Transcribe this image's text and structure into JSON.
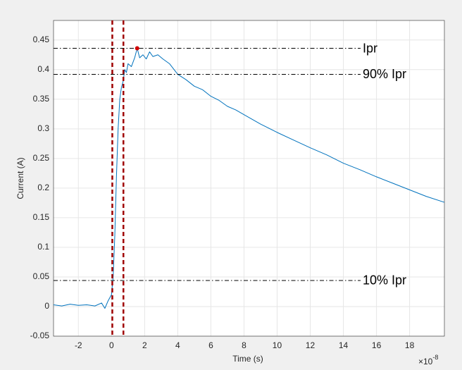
{
  "chart_data": {
    "type": "line",
    "xlabel": "Time (s)",
    "ylabel": "Current (A)",
    "x_multiplier": {
      "base": "×10",
      "exponent": "-8"
    },
    "xlim": [
      -3.5,
      20.1
    ],
    "ylim": [
      -0.05,
      0.483
    ],
    "xticks": [
      -2,
      0,
      2,
      4,
      6,
      8,
      10,
      12,
      14,
      16,
      18
    ],
    "yticks": [
      -0.05,
      0,
      0.05,
      0.1,
      0.15,
      0.2,
      0.25,
      0.3,
      0.35,
      0.4,
      0.45
    ],
    "grid": true,
    "x": [
      -3.5,
      -3,
      -2.5,
      -2,
      -1.5,
      -1,
      -0.6,
      -0.4,
      -0.2,
      0,
      0.1,
      0.2,
      0.3,
      0.4,
      0.5,
      0.6,
      0.7,
      0.8,
      0.9,
      1.0,
      1.2,
      1.4,
      1.55,
      1.7,
      1.9,
      2.1,
      2.3,
      2.5,
      2.8,
      3.1,
      3.5,
      4,
      4.5,
      5,
      5.5,
      6,
      6.5,
      7,
      7.5,
      8,
      9,
      10,
      11,
      12,
      13,
      14,
      15,
      16,
      17,
      18,
      19,
      20.1
    ],
    "series": [
      {
        "color": "#0072bd",
        "values": [
          0.003,
          0.001,
          0.004,
          0.002,
          0.003,
          0.001,
          0.006,
          -0.003,
          0.01,
          0.02,
          0.05,
          0.12,
          0.22,
          0.3,
          0.35,
          0.37,
          0.38,
          0.4,
          0.395,
          0.41,
          0.405,
          0.42,
          0.436,
          0.42,
          0.425,
          0.418,
          0.43,
          0.422,
          0.425,
          0.418,
          0.41,
          0.392,
          0.383,
          0.372,
          0.366,
          0.355,
          0.348,
          0.338,
          0.332,
          0.324,
          0.308,
          0.294,
          0.281,
          0.268,
          0.256,
          0.242,
          0.231,
          0.219,
          0.208,
          0.197,
          0.186,
          0.176
        ]
      }
    ],
    "reference_lines": [
      {
        "value": 0.436,
        "label": "Ipr"
      },
      {
        "value": 0.392,
        "label": "90% Ipr"
      },
      {
        "value": 0.044,
        "label": "10% Ipr"
      }
    ],
    "vertical_lines": {
      "color": "#a00000",
      "values": [
        0.05,
        0.72
      ]
    },
    "peak": {
      "x": 1.55,
      "y": 0.436,
      "color": "#d00000"
    }
  }
}
